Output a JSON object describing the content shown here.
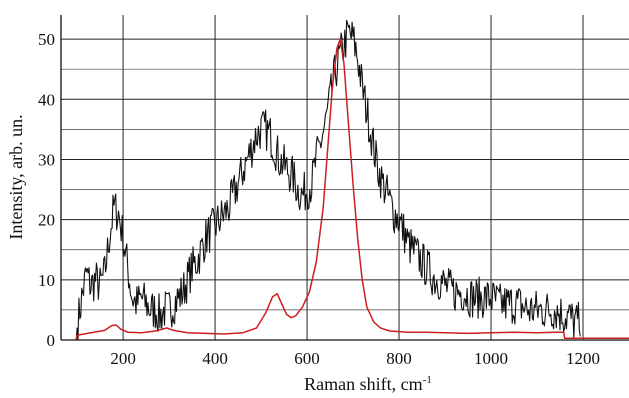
{
  "chart_data": {
    "type": "line",
    "title": "",
    "xlabel": "Raman shift, cm",
    "xlabel_superscript": "-1",
    "ylabel": "Intensity, arb. un.",
    "xlim": [
      65,
      1300
    ],
    "ylim": [
      0,
      54
    ],
    "x_ticks": [
      200,
      400,
      600,
      800,
      1000,
      1200
    ],
    "y_ticks": [
      0,
      10,
      20,
      30,
      40,
      50
    ],
    "grid": true,
    "legend": "none",
    "series": [
      {
        "color": "#111111",
        "noisy": true,
        "points": [
          [
            98,
            0
          ],
          [
            100,
            2
          ],
          [
            110,
            7
          ],
          [
            120,
            11
          ],
          [
            130,
            9
          ],
          [
            140,
            10
          ],
          [
            150,
            9
          ],
          [
            160,
            11
          ],
          [
            170,
            17
          ],
          [
            180,
            22
          ],
          [
            190,
            21
          ],
          [
            200,
            17
          ],
          [
            210,
            12
          ],
          [
            220,
            7
          ],
          [
            230,
            6
          ],
          [
            240,
            7
          ],
          [
            250,
            6
          ],
          [
            260,
            5
          ],
          [
            270,
            5
          ],
          [
            280,
            4
          ],
          [
            290,
            5
          ],
          [
            300,
            5
          ],
          [
            310,
            6
          ],
          [
            320,
            7
          ],
          [
            330,
            8
          ],
          [
            340,
            10
          ],
          [
            350,
            12
          ],
          [
            360,
            13
          ],
          [
            370,
            15
          ],
          [
            380,
            17
          ],
          [
            390,
            18
          ],
          [
            400,
            19
          ],
          [
            410,
            20
          ],
          [
            420,
            21
          ],
          [
            430,
            22
          ],
          [
            440,
            24
          ],
          [
            450,
            26
          ],
          [
            460,
            28
          ],
          [
            470,
            30
          ],
          [
            480,
            32
          ],
          [
            490,
            34
          ],
          [
            500,
            35
          ],
          [
            510,
            35
          ],
          [
            520,
            34
          ],
          [
            530,
            32
          ],
          [
            540,
            30
          ],
          [
            550,
            29
          ],
          [
            560,
            28
          ],
          [
            570,
            27
          ],
          [
            580,
            25
          ],
          [
            590,
            24
          ],
          [
            600,
            25
          ],
          [
            610,
            26
          ],
          [
            620,
            30
          ],
          [
            630,
            33
          ],
          [
            640,
            36
          ],
          [
            650,
            40
          ],
          [
            660,
            44
          ],
          [
            670,
            47
          ],
          [
            680,
            49
          ],
          [
            690,
            51
          ],
          [
            700,
            50
          ],
          [
            710,
            47
          ],
          [
            720,
            42
          ],
          [
            730,
            38
          ],
          [
            740,
            34
          ],
          [
            750,
            30
          ],
          [
            760,
            27
          ],
          [
            770,
            25
          ],
          [
            780,
            23
          ],
          [
            790,
            21
          ],
          [
            800,
            20
          ],
          [
            810,
            18
          ],
          [
            820,
            16
          ],
          [
            830,
            15
          ],
          [
            840,
            14
          ],
          [
            850,
            13
          ],
          [
            860,
            12
          ],
          [
            870,
            11
          ],
          [
            880,
            10
          ],
          [
            890,
            10
          ],
          [
            900,
            9
          ],
          [
            920,
            8
          ],
          [
            940,
            8
          ],
          [
            960,
            7
          ],
          [
            980,
            7
          ],
          [
            1000,
            7
          ],
          [
            1020,
            6
          ],
          [
            1040,
            6
          ],
          [
            1060,
            6
          ],
          [
            1080,
            5
          ],
          [
            1100,
            5
          ],
          [
            1120,
            5
          ],
          [
            1140,
            5
          ],
          [
            1160,
            4
          ],
          [
            1170,
            4
          ],
          [
            1180,
            3
          ],
          [
            1190,
            3
          ],
          [
            1195,
            0
          ]
        ]
      },
      {
        "color": "#cc1f1f",
        "noisy": false,
        "points": [
          [
            98,
            0
          ],
          [
            100,
            0.8
          ],
          [
            130,
            1.2
          ],
          [
            160,
            1.6
          ],
          [
            175,
            2.4
          ],
          [
            185,
            2.5
          ],
          [
            195,
            1.8
          ],
          [
            210,
            1.3
          ],
          [
            240,
            1.2
          ],
          [
            270,
            1.5
          ],
          [
            295,
            2.0
          ],
          [
            310,
            1.6
          ],
          [
            340,
            1.2
          ],
          [
            380,
            1.1
          ],
          [
            420,
            1.0
          ],
          [
            460,
            1.2
          ],
          [
            490,
            2.0
          ],
          [
            510,
            4.5
          ],
          [
            525,
            7.2
          ],
          [
            535,
            7.7
          ],
          [
            545,
            6.0
          ],
          [
            555,
            4.3
          ],
          [
            565,
            3.7
          ],
          [
            575,
            4.0
          ],
          [
            590,
            5.5
          ],
          [
            605,
            8.0
          ],
          [
            620,
            13
          ],
          [
            635,
            22
          ],
          [
            645,
            32
          ],
          [
            655,
            42
          ],
          [
            665,
            48.5
          ],
          [
            672,
            50
          ],
          [
            680,
            46
          ],
          [
            690,
            36
          ],
          [
            700,
            26
          ],
          [
            710,
            17
          ],
          [
            720,
            10
          ],
          [
            730,
            5.5
          ],
          [
            745,
            3.0
          ],
          [
            760,
            2.0
          ],
          [
            780,
            1.5
          ],
          [
            820,
            1.3
          ],
          [
            860,
            1.3
          ],
          [
            900,
            1.2
          ],
          [
            950,
            1.1
          ],
          [
            1000,
            1.2
          ],
          [
            1050,
            1.3
          ],
          [
            1100,
            1.2
          ],
          [
            1140,
            1.3
          ],
          [
            1158,
            1.3
          ],
          [
            1160,
            0.3
          ],
          [
            1300,
            0.3
          ]
        ]
      }
    ]
  }
}
